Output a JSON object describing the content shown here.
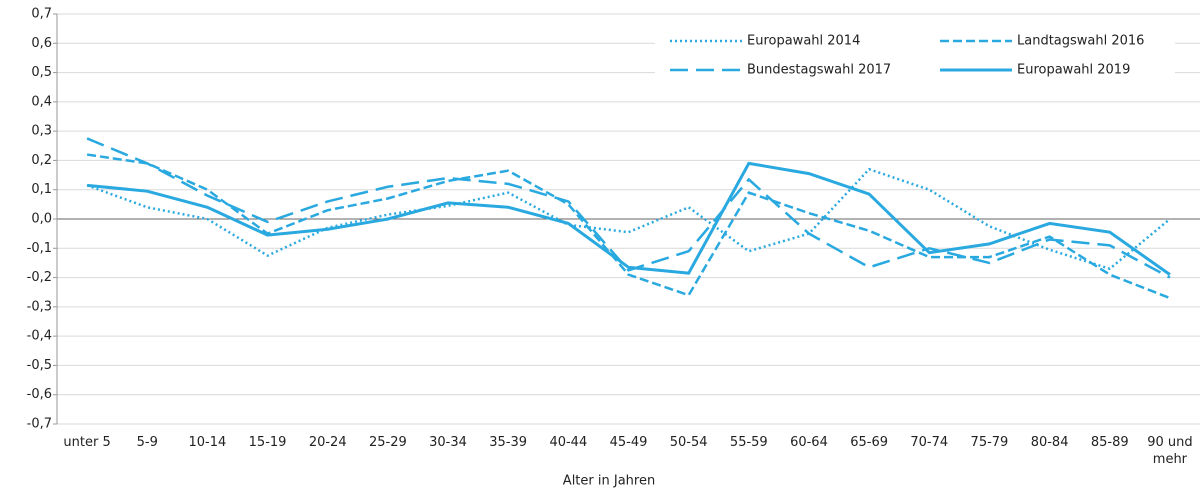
{
  "chart_data": {
    "type": "line",
    "xlabel": "Alter in Jahren",
    "categories": [
      "unter 5",
      "5-9",
      "10-14",
      "15-19",
      "20-24",
      "25-29",
      "30-34",
      "35-39",
      "40-44",
      "45-49",
      "50-54",
      "55-59",
      "60-64",
      "65-69",
      "70-74",
      "75-79",
      "80-84",
      "85-89",
      "90 und mehr"
    ],
    "series": [
      {
        "name": "Europawahl 2014",
        "color": "#29a9e0",
        "dash": "dotted",
        "values": [
          0.115,
          0.04,
          0.0,
          -0.125,
          -0.03,
          0.015,
          0.045,
          0.09,
          -0.02,
          -0.045,
          0.04,
          -0.11,
          -0.05,
          0.17,
          0.1,
          -0.025,
          -0.105,
          -0.17,
          0.0
        ]
      },
      {
        "name": "Landtagswahl 2016",
        "color": "#29a9e0",
        "dash": "short",
        "values": [
          0.22,
          0.19,
          0.1,
          -0.05,
          0.03,
          0.07,
          0.13,
          0.165,
          0.05,
          -0.19,
          -0.26,
          0.09,
          0.02,
          -0.04,
          -0.13,
          -0.13,
          -0.06,
          -0.19,
          -0.27
        ]
      },
      {
        "name": "Bundestagswahl 2017",
        "color": "#29a9e0",
        "dash": "long",
        "values": [
          0.275,
          0.19,
          0.08,
          -0.01,
          0.06,
          0.11,
          0.14,
          0.12,
          0.06,
          -0.175,
          -0.11,
          0.135,
          -0.05,
          -0.165,
          -0.1,
          -0.15,
          -0.07,
          -0.09,
          -0.2
        ]
      },
      {
        "name": "Europawahl 2019",
        "color": "#29a9e0",
        "dash": "solid",
        "values": [
          0.115,
          0.095,
          0.04,
          -0.055,
          -0.035,
          0.0,
          0.055,
          0.04,
          -0.015,
          -0.165,
          -0.185,
          0.19,
          0.155,
          0.085,
          -0.115,
          -0.085,
          -0.015,
          -0.045,
          -0.19
        ]
      }
    ],
    "ylim": [
      -0.7,
      0.7
    ],
    "yticks": [
      {
        "value": -0.7,
        "label": "-0,7"
      },
      {
        "value": -0.6,
        "label": "-0,6"
      },
      {
        "value": -0.5,
        "label": "-0,5"
      },
      {
        "value": -0.4,
        "label": "-0,4"
      },
      {
        "value": -0.3,
        "label": "-0,3"
      },
      {
        "value": -0.2,
        "label": "-0,2"
      },
      {
        "value": -0.1,
        "label": "-0,1"
      },
      {
        "value": 0,
        "label": "0,0"
      },
      {
        "value": 0.1,
        "label": "0,1"
      },
      {
        "value": 0.2,
        "label": "0,2"
      },
      {
        "value": 0.3,
        "label": "0,3"
      },
      {
        "value": 0.4,
        "label": "0,4"
      },
      {
        "value": 0.5,
        "label": "0,5"
      },
      {
        "value": 0.6,
        "label": "0,6"
      },
      {
        "value": 0.7,
        "label": "0,7"
      }
    ],
    "grid": true,
    "legend": "top-right"
  }
}
